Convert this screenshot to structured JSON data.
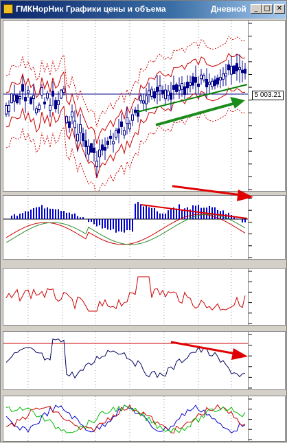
{
  "window": {
    "title": "ГМКНорНик Графики цены и объема",
    "period": "Дневной",
    "minimize_glyph": "_",
    "maximize_glyph": "□",
    "close_glyph": "✕",
    "icon": "chart-app-icon"
  },
  "price_pane": {
    "last_price_label": "5 003.21",
    "colors": {
      "candles": "#00008b",
      "bands": "#cc0000",
      "trend_line": "#008000",
      "arrow": "#1a8c1a",
      "level_line": "#000080"
    }
  },
  "annotations": {
    "arrow_color": "#e00000",
    "divergence_line_color": "#e00000"
  },
  "oscillator_pane": {
    "histogram_color": "#0000cc",
    "line1_color": "#cc0000",
    "line2_color": "#2e8b2e"
  },
  "rsi_pane": {
    "line_color": "#cc0000"
  },
  "stoch_pane": {
    "line_color": "#000060",
    "level_color": "#cc0000"
  },
  "dmi_pane": {
    "colors": [
      "#0000cc",
      "#cc0000",
      "#00bb00"
    ]
  }
}
